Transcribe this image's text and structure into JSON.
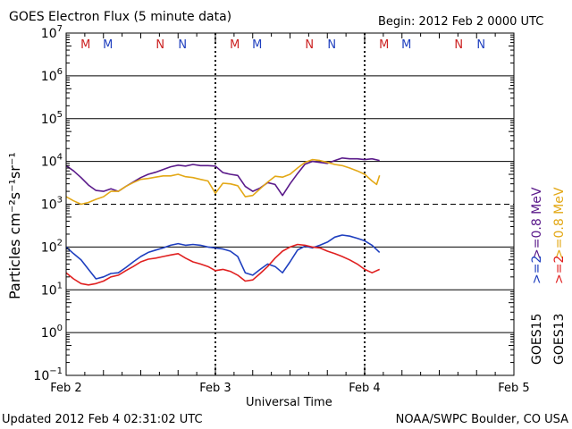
{
  "header": {
    "title": "GOES Electron Flux (5 minute data)",
    "begin": "Begin: 2012 Feb 2 0000 UTC"
  },
  "footer": {
    "updated": "Updated 2012 Feb  4 02:31:02 UTC",
    "credit": "NOAA/SWPC Boulder, CO USA"
  },
  "colors": {
    "goes15_08": "#5a1a8a",
    "goes13_08": "#e3a816",
    "goes15_2": "#1f3fbf",
    "goes13_2": "#e02020",
    "m_marker": "#cc2222",
    "n_marker": "#1f3fbf"
  },
  "chart_data": {
    "type": "line",
    "y_scale": "log",
    "ylim_exponent": [
      -1,
      7
    ],
    "ylabel": "Particles cm⁻²s⁻¹sr⁻¹",
    "xlabel": "Universal Time",
    "x_unit": "days since 2012 Feb 2 0000 UTC",
    "xlim": [
      0,
      3
    ],
    "x_ticks": [
      {
        "x": 0,
        "label": "Feb 2"
      },
      {
        "x": 1,
        "label": "Feb 3"
      },
      {
        "x": 2,
        "label": "Feb 4"
      },
      {
        "x": 3,
        "label": "Feb 5"
      }
    ],
    "y_ticks": [
      {
        "exp": 7,
        "label": "7"
      },
      {
        "exp": 6,
        "label": "6"
      },
      {
        "exp": 5,
        "label": "5"
      },
      {
        "exp": 4,
        "label": "4"
      },
      {
        "exp": 3,
        "label": "3"
      },
      {
        "exp": 2,
        "label": "2"
      },
      {
        "exp": 1,
        "label": "1"
      },
      {
        "exp": 0,
        "label": "0"
      },
      {
        "exp": -1,
        "label": "−1"
      }
    ],
    "threshold_exp": 3,
    "day_boundaries": [
      1,
      2
    ],
    "mn_markers": [
      {
        "x": 0.13,
        "label": "M",
        "kind": "m"
      },
      {
        "x": 0.28,
        "label": "M",
        "kind": "n"
      },
      {
        "x": 0.63,
        "label": "N",
        "kind": "m"
      },
      {
        "x": 0.78,
        "label": "N",
        "kind": "n"
      },
      {
        "x": 1.13,
        "label": "M",
        "kind": "m"
      },
      {
        "x": 1.28,
        "label": "M",
        "kind": "n"
      },
      {
        "x": 1.63,
        "label": "N",
        "kind": "m"
      },
      {
        "x": 1.78,
        "label": "N",
        "kind": "n"
      },
      {
        "x": 2.13,
        "label": "M",
        "kind": "m"
      },
      {
        "x": 2.28,
        "label": "M",
        "kind": "n"
      },
      {
        "x": 2.63,
        "label": "N",
        "kind": "m"
      },
      {
        "x": 2.78,
        "label": "N",
        "kind": "n"
      }
    ],
    "legend": {
      "goes15_08": ">=0.8  MeV",
      "goes13_08": ">=0.8  MeV",
      "goes15_2": ">=2",
      "goes13_2": ">=2",
      "goes15": "GOES15",
      "goes13": "GOES13"
    },
    "series": [
      {
        "key": "goes15_08",
        "color_key": "goes15_08",
        "x": [
          0,
          0.05,
          0.1,
          0.15,
          0.2,
          0.25,
          0.3,
          0.35,
          0.4,
          0.45,
          0.5,
          0.55,
          0.6,
          0.65,
          0.7,
          0.75,
          0.8,
          0.85,
          0.9,
          0.95,
          1.0,
          1.05,
          1.1,
          1.15,
          1.2,
          1.25,
          1.3,
          1.35,
          1.4,
          1.45,
          1.5,
          1.55,
          1.6,
          1.65,
          1.7,
          1.75,
          1.8,
          1.85,
          1.9,
          1.95,
          2.0,
          2.05,
          2.1
        ],
        "y": [
          8000,
          6000,
          4200,
          2800,
          2100,
          2000,
          2300,
          2000,
          2600,
          3300,
          4200,
          5000,
          5600,
          6500,
          7500,
          8200,
          7800,
          8500,
          8000,
          8000,
          7800,
          5500,
          5000,
          4700,
          2600,
          2000,
          2400,
          3200,
          2900,
          1600,
          3000,
          5200,
          8600,
          10000,
          9500,
          9000,
          10500,
          12000,
          11500,
          11500,
          11000,
          11500,
          10500
        ]
      },
      {
        "key": "goes13_08",
        "color_key": "goes13_08",
        "x": [
          0,
          0.05,
          0.1,
          0.15,
          0.2,
          0.25,
          0.3,
          0.35,
          0.4,
          0.45,
          0.5,
          0.55,
          0.6,
          0.65,
          0.7,
          0.75,
          0.8,
          0.85,
          0.9,
          0.95,
          1.0,
          1.05,
          1.1,
          1.15,
          1.2,
          1.25,
          1.3,
          1.35,
          1.4,
          1.45,
          1.5,
          1.55,
          1.6,
          1.65,
          1.7,
          1.75,
          1.8,
          1.85,
          1.9,
          1.95,
          2.0,
          2.05,
          2.08,
          2.1
        ],
        "y": [
          1500,
          1200,
          1000,
          1100,
          1300,
          1500,
          2000,
          2000,
          2600,
          3200,
          3800,
          4000,
          4300,
          4600,
          4600,
          5000,
          4400,
          4200,
          3800,
          3500,
          1800,
          3100,
          3000,
          2700,
          1500,
          1600,
          2300,
          3300,
          4500,
          4300,
          5000,
          7000,
          9500,
          11000,
          10500,
          9500,
          8500,
          8000,
          7000,
          6000,
          5000,
          3500,
          2900,
          4700
        ]
      },
      {
        "key": "goes15_2",
        "color_key": "goes15_2",
        "x": [
          0,
          0.05,
          0.1,
          0.15,
          0.2,
          0.25,
          0.3,
          0.35,
          0.4,
          0.45,
          0.5,
          0.55,
          0.6,
          0.65,
          0.7,
          0.75,
          0.8,
          0.85,
          0.9,
          0.95,
          1.0,
          1.05,
          1.1,
          1.15,
          1.2,
          1.25,
          1.3,
          1.35,
          1.4,
          1.45,
          1.5,
          1.55,
          1.6,
          1.65,
          1.7,
          1.75,
          1.8,
          1.85,
          1.9,
          1.95,
          2.0,
          2.05,
          2.1
        ],
        "y": [
          100,
          70,
          50,
          30,
          18,
          20,
          24,
          25,
          33,
          45,
          60,
          75,
          85,
          95,
          110,
          120,
          110,
          115,
          110,
          100,
          95,
          90,
          80,
          60,
          25,
          22,
          30,
          40,
          35,
          25,
          45,
          85,
          105,
          95,
          110,
          130,
          170,
          190,
          180,
          160,
          140,
          110,
          75
        ]
      },
      {
        "key": "goes13_2",
        "color_key": "goes13_2",
        "x": [
          0,
          0.05,
          0.1,
          0.15,
          0.2,
          0.25,
          0.3,
          0.35,
          0.4,
          0.45,
          0.5,
          0.55,
          0.6,
          0.65,
          0.7,
          0.75,
          0.8,
          0.85,
          0.9,
          0.95,
          1.0,
          1.05,
          1.1,
          1.15,
          1.2,
          1.25,
          1.3,
          1.35,
          1.4,
          1.45,
          1.5,
          1.55,
          1.6,
          1.65,
          1.7,
          1.75,
          1.8,
          1.85,
          1.9,
          1.95,
          2.0,
          2.05,
          2.1
        ],
        "y": [
          25,
          18,
          14,
          13,
          14,
          16,
          20,
          22,
          28,
          35,
          45,
          52,
          55,
          60,
          65,
          70,
          55,
          45,
          40,
          35,
          28,
          30,
          27,
          22,
          16,
          17,
          24,
          35,
          55,
          80,
          100,
          115,
          110,
          100,
          95,
          80,
          70,
          60,
          50,
          40,
          30,
          25,
          30
        ]
      }
    ]
  }
}
